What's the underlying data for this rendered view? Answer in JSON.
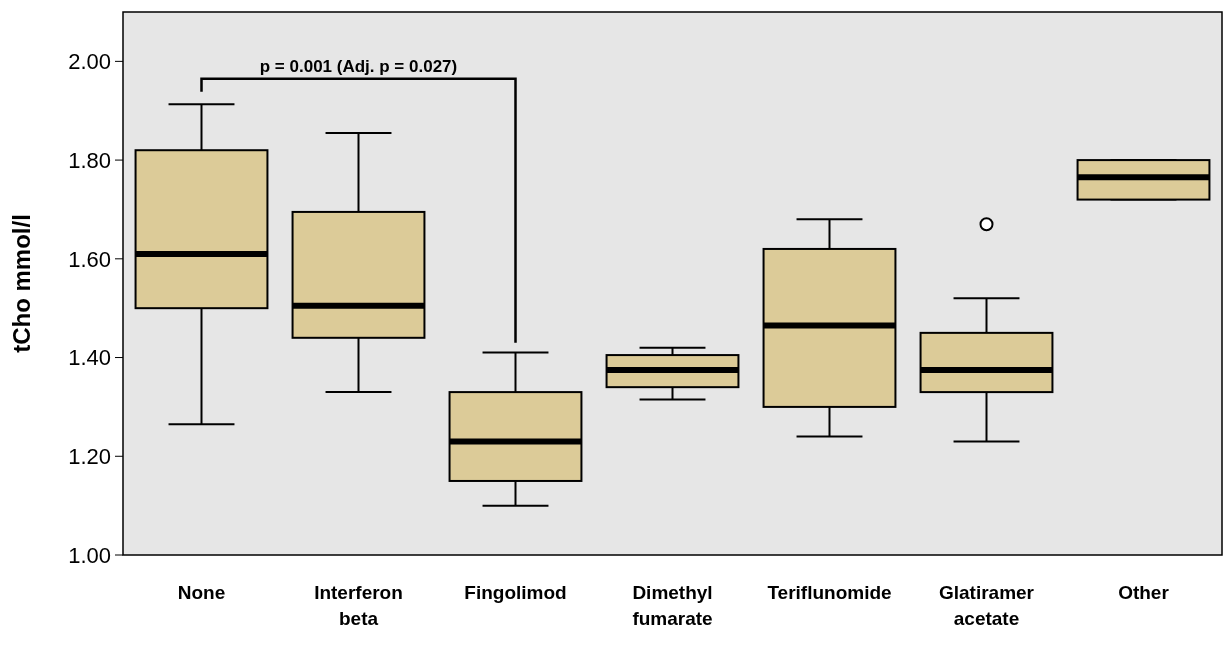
{
  "chart_data": {
    "type": "box",
    "ylabel": "tCho mmol/l",
    "categories": [
      "None",
      "Interferon beta",
      "Fingolimod",
      "Dimethyl fumarate",
      "Teriflunomide",
      "Glatiramer acetate",
      "Other"
    ],
    "boxes": [
      {
        "low": 1.265,
        "q1": 1.5,
        "median": 1.61,
        "q3": 1.82,
        "high": 1.913
      },
      {
        "low": 1.33,
        "q1": 1.44,
        "median": 1.505,
        "q3": 1.695,
        "high": 1.855
      },
      {
        "low": 1.1,
        "q1": 1.15,
        "median": 1.23,
        "q3": 1.33,
        "high": 1.41
      },
      {
        "low": 1.315,
        "q1": 1.34,
        "median": 1.375,
        "q3": 1.405,
        "high": 1.42
      },
      {
        "low": 1.24,
        "q1": 1.3,
        "median": 1.465,
        "q3": 1.62,
        "high": 1.68
      },
      {
        "low": 1.23,
        "q1": 1.33,
        "median": 1.375,
        "q3": 1.45,
        "high": 1.52,
        "outliers": [
          1.67
        ]
      },
      {
        "low": 1.72,
        "q1": 1.72,
        "median": 1.765,
        "q3": 1.8,
        "high": 1.8
      }
    ],
    "color": "#dccb98",
    "ylim": [
      1.0,
      2.1
    ],
    "yticks": [
      {
        "value": 1.0,
        "label": "1.00"
      },
      {
        "value": 1.2,
        "label": "1.20"
      },
      {
        "value": 1.4,
        "label": "1.40"
      },
      {
        "value": 1.6,
        "label": "1.60"
      },
      {
        "value": 1.8,
        "label": "1.80"
      },
      {
        "value": 2.0,
        "label": "2.00"
      }
    ],
    "annotations": [
      "p = 0.001 (Adj. p = 0.027)"
    ]
  }
}
